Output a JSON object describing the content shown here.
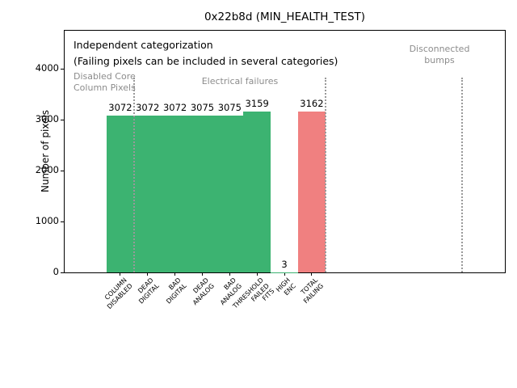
{
  "figure": {
    "title": "0x22b8d (MIN_HEALTH_TEST)"
  },
  "annotations": {
    "line1": "Independent categorization",
    "line2": "(Failing pixels can be included in several categories)"
  },
  "chart_data": {
    "type": "bar",
    "title": "0x22b8d (MIN_HEALTH_TEST)",
    "xlabel": "",
    "ylabel": "Number of pixels",
    "categories": [
      "COLUMN\nDISABLED",
      "DEAD\nDIGITAL",
      "BAD\nDIGITAL",
      "DEAD\nANALOG",
      "BAD\nANALOG",
      "THRESHOLD\nFAILED\nFITS",
      "HIGH\nENC",
      "TOTAL\nFAILING"
    ],
    "values": [
      3072,
      3072,
      3072,
      3075,
      3075,
      3159,
      3,
      3162
    ],
    "bar_value_labels": [
      "3072",
      "3072",
      "3072",
      "3075",
      "3075",
      "3159",
      "3",
      "3162"
    ],
    "bar_colors": [
      "#3cb371",
      "#3cb371",
      "#3cb371",
      "#3cb371",
      "#3cb371",
      "#3cb371",
      "#3cb371",
      "#f08080"
    ],
    "yticks": [
      0,
      1000,
      2000,
      3000,
      4000
    ],
    "ylim": [
      0,
      4762
    ],
    "grid": false,
    "legend": null,
    "sections": [
      {
        "label": "Disabled Core\nColumn Pixels",
        "categories": [
          "COLUMN DISABLED"
        ]
      },
      {
        "label": "Electrical failures",
        "categories": [
          "DEAD DIGITAL",
          "BAD DIGITAL",
          "DEAD ANALOG",
          "BAD ANALOG",
          "THRESHOLD FAILED FITS",
          "HIGH ENC"
        ]
      },
      {
        "label": "Disconnected\nbumps",
        "categories": []
      }
    ]
  },
  "colors": {
    "bar_green": "#3cb371",
    "bar_red": "#f08080",
    "section_text_gray": "#8c8c8c",
    "separator_gray": "#999999",
    "axis": "#000000"
  }
}
